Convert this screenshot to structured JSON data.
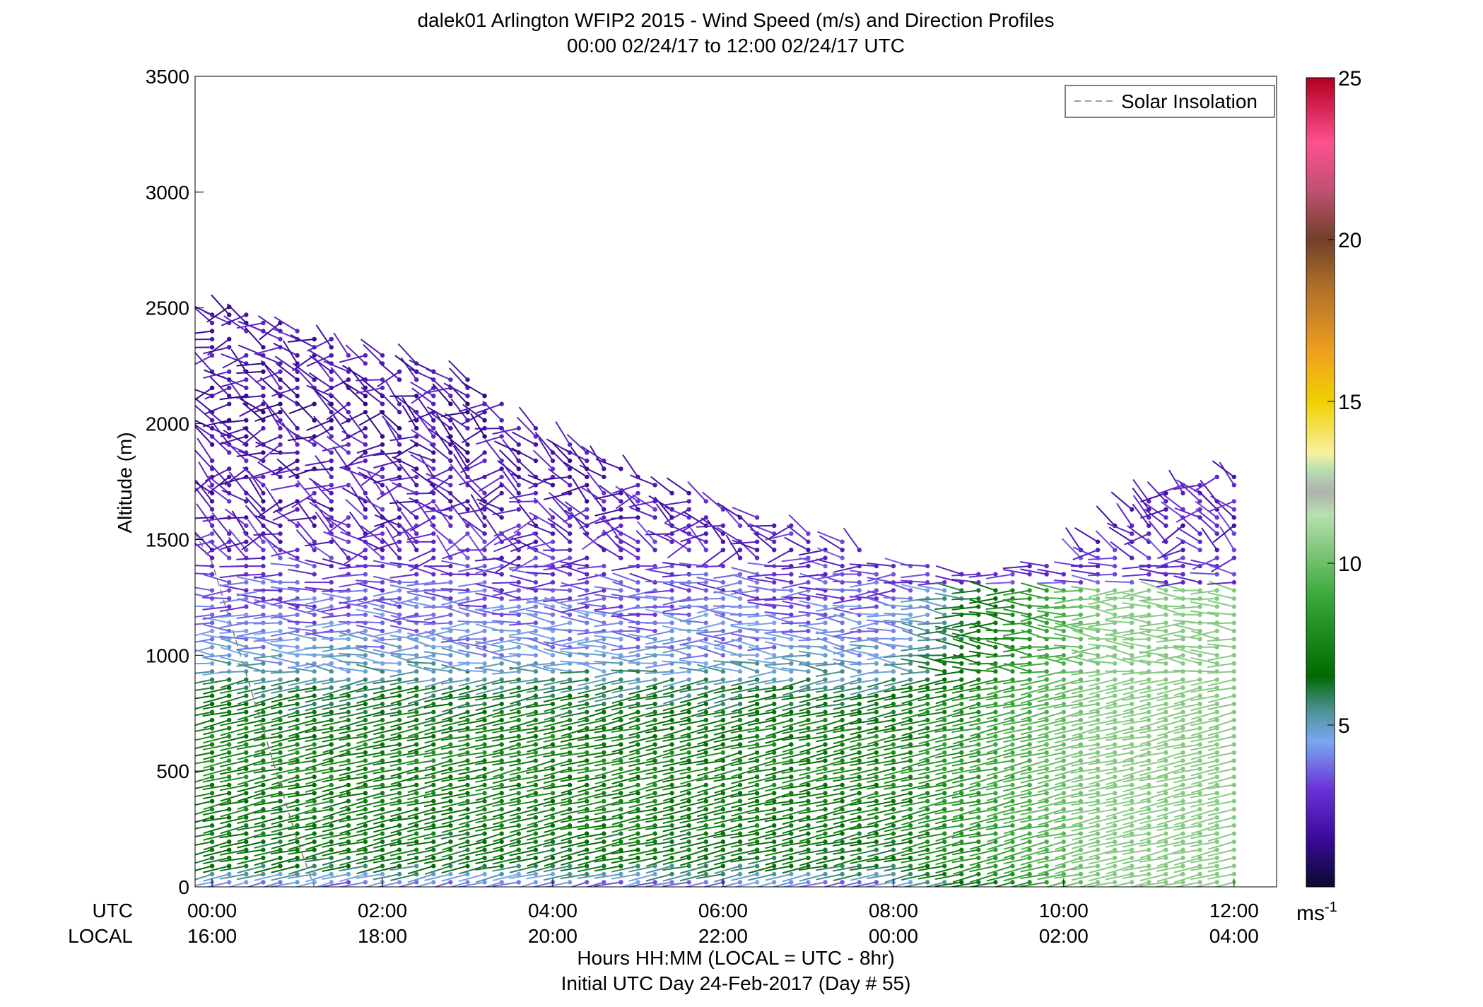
{
  "chart_data": {
    "type": "wind-barb-profile",
    "title": "dalek01 Arlington WFIP2 2015 - Wind Speed (m/s) and Direction Profiles",
    "subtitle": "00:00 02/24/17 to 12:00 02/24/17  UTC",
    "ylabel": "Altitude (m)",
    "ylim": [
      0,
      3500
    ],
    "yticks": [
      0,
      500,
      1000,
      1500,
      2000,
      2500,
      3000,
      3500
    ],
    "xlim_hours": [
      -0.2,
      12.5
    ],
    "xticks_hours": [
      0,
      2,
      4,
      6,
      8,
      10,
      12
    ],
    "utc_row_label": "UTC",
    "local_row_label": "LOCAL",
    "utc_ticks": [
      "00:00",
      "02:00",
      "04:00",
      "06:00",
      "08:00",
      "10:00",
      "12:00"
    ],
    "local_ticks": [
      "16:00",
      "18:00",
      "20:00",
      "22:00",
      "00:00",
      "02:00",
      "04:00"
    ],
    "xlabel_line1": "Hours HH:MM  (LOCAL = UTC - 8hr)",
    "xlabel_line2": "Initial UTC Day 24-Feb-2017 (Day # 55)",
    "legend": {
      "entry": "Solar Insolation",
      "style": "dashed",
      "color": "#808080",
      "placement": "top-right"
    },
    "solar_insolation": {
      "hours": [
        -0.4,
        0.0,
        0.5,
        1.0,
        1.2
      ],
      "altitude": [
        1650,
        1400,
        800,
        200,
        0
      ]
    },
    "colorbar": {
      "range": [
        0,
        25
      ],
      "ticks": [
        5,
        10,
        15,
        20,
        25
      ],
      "unit": "ms",
      "unit_exponent": "-1",
      "colorstops": [
        {
          "v": 0,
          "c": "#0a0a30"
        },
        {
          "v": 1.5,
          "c": "#3a0a9a"
        },
        {
          "v": 3,
          "c": "#6a30d8"
        },
        {
          "v": 4.5,
          "c": "#7aa8f0"
        },
        {
          "v": 5.5,
          "c": "#4a9090"
        },
        {
          "v": 6.5,
          "c": "#006a00"
        },
        {
          "v": 9,
          "c": "#3aa83a"
        },
        {
          "v": 11.5,
          "c": "#b8e0b0"
        },
        {
          "v": 12.2,
          "c": "#b0b0b0"
        },
        {
          "v": 12.9,
          "c": "#b8e0b0"
        },
        {
          "v": 13.4,
          "c": "#f8f0a0"
        },
        {
          "v": 15,
          "c": "#f0d000"
        },
        {
          "v": 16.5,
          "c": "#f0a020"
        },
        {
          "v": 18.5,
          "c": "#b07028"
        },
        {
          "v": 20,
          "c": "#70402a"
        },
        {
          "v": 21.5,
          "c": "#c05070"
        },
        {
          "v": 23,
          "c": "#ff5090"
        },
        {
          "v": 25,
          "c": "#b00020"
        }
      ]
    },
    "profile_summary": {
      "time_step_hours": 0.2,
      "alt_step_m": 35,
      "max_altitude_m_by_hour": [
        [
          0,
          2560
        ],
        [
          1,
          2420
        ],
        [
          2,
          2300
        ],
        [
          3,
          2200
        ],
        [
          4,
          1950
        ],
        [
          5,
          1800
        ],
        [
          6,
          1650
        ],
        [
          7,
          1550
        ],
        [
          8,
          1420
        ],
        [
          9,
          1350
        ],
        [
          10,
          1420
        ],
        [
          11,
          1700
        ],
        [
          12,
          1800
        ]
      ],
      "speed_ms_by_altitude": [
        [
          0,
          3.5
        ],
        [
          100,
          6.5
        ],
        [
          300,
          7.0
        ],
        [
          600,
          7.5
        ],
        [
          800,
          6.5
        ],
        [
          1000,
          4.5
        ],
        [
          1500,
          2.5
        ],
        [
          2000,
          1.8
        ],
        [
          2500,
          2.0
        ]
      ],
      "late_period_speed_ms": 10.5
    }
  }
}
